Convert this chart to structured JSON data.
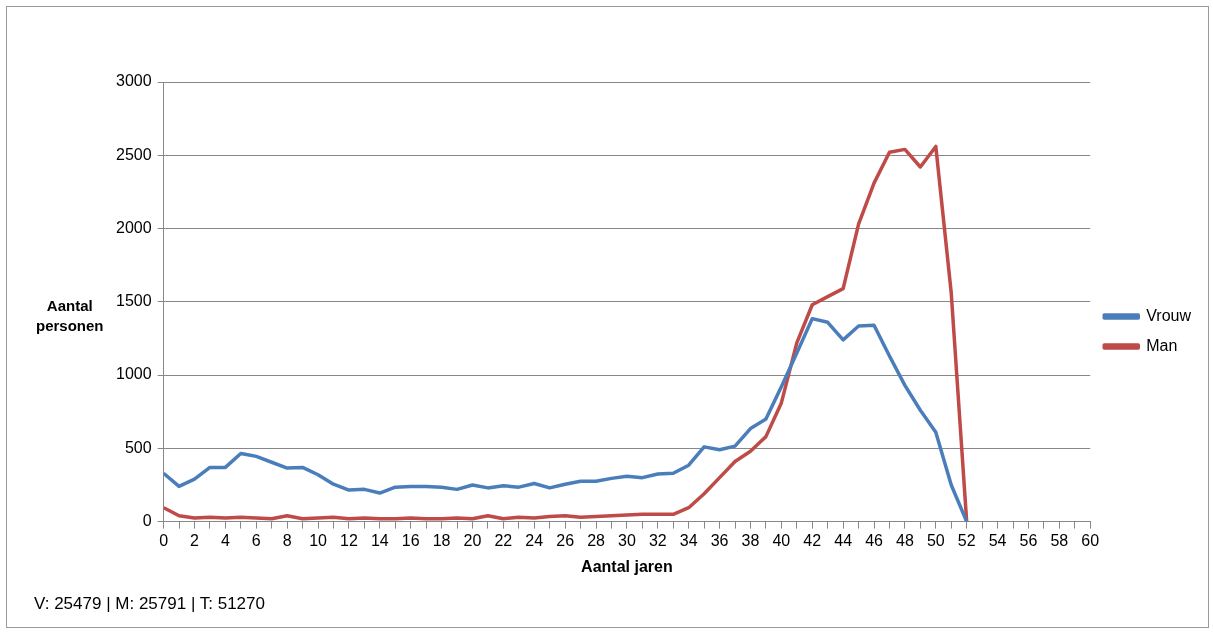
{
  "chart_data": {
    "type": "line",
    "xlabel": "Aantal jaren",
    "ylabel": "Aantal\npersonen",
    "x": [
      0,
      1,
      2,
      3,
      4,
      5,
      6,
      7,
      8,
      9,
      10,
      11,
      12,
      13,
      14,
      15,
      16,
      17,
      18,
      19,
      20,
      21,
      22,
      23,
      24,
      25,
      26,
      27,
      28,
      29,
      30,
      31,
      32,
      33,
      34,
      35,
      36,
      37,
      38,
      39,
      40,
      41,
      42,
      43,
      44,
      45,
      46,
      47,
      48,
      49,
      50,
      51,
      52
    ],
    "series": [
      {
        "name": "Vrouw",
        "color": "#4a7ebb",
        "values": [
          330,
          240,
          290,
          370,
          370,
          465,
          445,
          405,
          365,
          370,
          320,
          255,
          215,
          220,
          195,
          235,
          240,
          240,
          235,
          220,
          250,
          230,
          245,
          235,
          260,
          230,
          255,
          275,
          275,
          295,
          310,
          300,
          325,
          330,
          385,
          510,
          490,
          515,
          635,
          700,
          920,
          1150,
          1385,
          1360,
          1240,
          1335,
          1340,
          1130,
          930,
          760,
          610,
          250,
          0
        ]
      },
      {
        "name": "Man",
        "color": "#be4b48",
        "values": [
          95,
          40,
          25,
          30,
          25,
          30,
          25,
          20,
          40,
          20,
          25,
          30,
          20,
          25,
          20,
          20,
          25,
          20,
          20,
          25,
          20,
          40,
          20,
          30,
          25,
          35,
          40,
          30,
          35,
          40,
          45,
          50,
          50,
          50,
          95,
          190,
          300,
          410,
          480,
          580,
          810,
          1220,
          1480,
          1535,
          1590,
          2030,
          2310,
          2520,
          2540,
          2420,
          2560,
          1560,
          0
        ]
      }
    ],
    "xlim": [
      0,
      60
    ],
    "xticks": [
      0,
      {
        "value": 1,
        "label": null
      },
      2,
      {
        "value": 3,
        "label": null
      },
      4,
      {
        "value": 5,
        "label": null
      },
      6,
      {
        "value": 7,
        "label": null
      },
      8,
      {
        "value": 9,
        "label": null
      },
      10,
      {
        "value": 11,
        "label": null
      },
      12,
      {
        "value": 13,
        "label": null
      },
      14,
      {
        "value": 15,
        "label": null
      },
      16,
      {
        "value": 17,
        "label": null
      },
      18,
      {
        "value": 19,
        "label": null
      },
      20,
      {
        "value": 21,
        "label": null
      },
      22,
      {
        "value": 23,
        "label": null
      },
      24,
      {
        "value": 25,
        "label": null
      },
      26,
      {
        "value": 27,
        "label": null
      },
      28,
      {
        "value": 29,
        "label": null
      },
      30,
      {
        "value": 31,
        "label": null
      },
      32,
      {
        "value": 33,
        "label": null
      },
      34,
      {
        "value": 35,
        "label": null
      },
      36,
      {
        "value": 37,
        "label": null
      },
      38,
      {
        "value": 39,
        "label": null
      },
      40,
      {
        "value": 41,
        "label": null
      },
      42,
      {
        "value": 43,
        "label": null
      },
      44,
      {
        "value": 45,
        "label": null
      },
      46,
      {
        "value": 47,
        "label": null
      },
      48,
      {
        "value": 49,
        "label": null
      },
      50,
      {
        "value": 51,
        "label": null
      },
      52,
      {
        "value": 53,
        "label": null
      },
      54,
      {
        "value": 55,
        "label": null
      },
      56,
      {
        "value": 57,
        "label": null
      },
      58,
      {
        "value": 59,
        "label": null
      },
      60
    ],
    "ylim": [
      0,
      3000
    ],
    "yticks": [
      0,
      500,
      1000,
      1500,
      2000,
      2500,
      3000
    ],
    "grid": "y",
    "legend": "right",
    "marker": "none",
    "line_style": "solid",
    "annotations": [
      "V: 25479 | M: 25791 | T: 51270"
    ]
  }
}
